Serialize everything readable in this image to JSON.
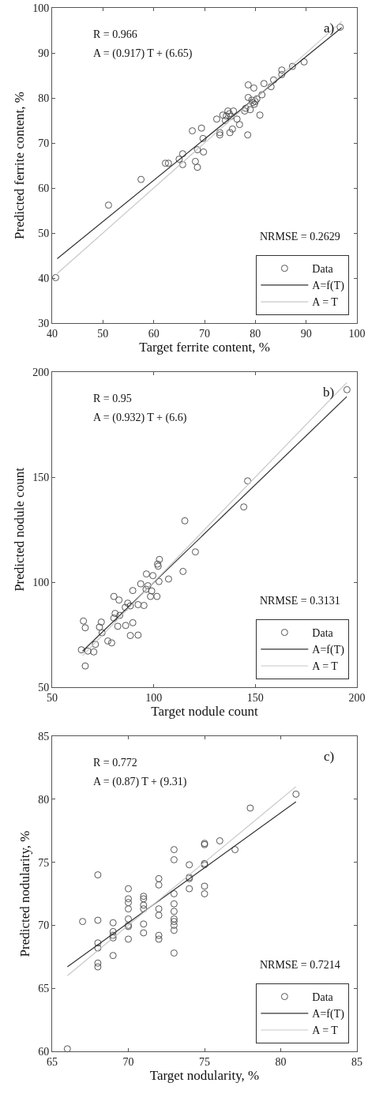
{
  "chart_data": [
    {
      "type": "scatter",
      "xlabel": "Target ferrite content, %",
      "ylabel": "Predicted ferrite content, %",
      "xlim": [
        40,
        100
      ],
      "ylim": [
        30,
        100
      ],
      "xticks": [
        40,
        50,
        60,
        70,
        80,
        90,
        100
      ],
      "yticks": [
        30,
        40,
        50,
        60,
        70,
        80,
        90,
        100
      ],
      "grid": false,
      "legend": "bottom right",
      "annotations": [
        "a)",
        "R = 0.966",
        "A = (0.917) T + (6.65)",
        "NRMSE = 0.2629"
      ],
      "series": [
        {
          "name": "Data",
          "type": "scatter",
          "marker": "circle",
          "color": "#555555",
          "x": [
            96.7,
            89.6,
            87.3,
            85.2,
            85.2,
            83.6,
            83.1,
            81.7,
            78.6,
            79.7,
            81.3,
            78.6,
            79.3,
            80.3,
            79.8,
            79.0,
            80.9,
            78.1,
            77.9,
            78.5,
            75.7,
            74.6,
            73.6,
            75.2,
            72.4,
            74.1,
            76.4,
            76.9,
            75.5,
            75.0,
            73.0,
            73.0,
            67.6,
            69.4,
            69.7,
            68.6,
            69.8,
            65.7,
            65.0,
            65.7,
            62.3,
            62.9,
            68.2,
            68.6,
            57.5,
            51.1,
            40.7,
            79.5,
            80.0,
            74.3,
            74.9
          ],
          "values": [
            95.7,
            88.0,
            87.0,
            86.2,
            85.2,
            84.0,
            82.5,
            83.2,
            82.9,
            82.2,
            80.7,
            80.1,
            79.5,
            79.8,
            78.6,
            77.4,
            76.2,
            77.7,
            77.1,
            71.8,
            77.1,
            77.1,
            76.2,
            75.9,
            75.3,
            75.0,
            75.3,
            74.1,
            73.1,
            72.3,
            72.3,
            71.8,
            72.7,
            73.3,
            71.0,
            68.5,
            68.0,
            67.6,
            66.4,
            65.2,
            65.5,
            65.5,
            65.9,
            64.6,
            61.9,
            56.2,
            40.1,
            79.0,
            79.2,
            76.0,
            76.5
          ]
        },
        {
          "name": "A=f(T)",
          "type": "line",
          "color": "#333333",
          "x": [
            41,
            97
          ],
          "values": [
            44.3,
            95.6
          ]
        },
        {
          "name": "A = T",
          "type": "line",
          "color": "#c8c8c8",
          "x": [
            41,
            97
          ],
          "values": [
            41,
            97
          ]
        }
      ]
    },
    {
      "type": "scatter",
      "xlabel": "Target nodule count",
      "ylabel": "Predicted nodule count",
      "xlim": [
        50,
        200
      ],
      "ylim": [
        50,
        200
      ],
      "xticks": [
        50,
        100,
        150,
        200
      ],
      "yticks": [
        50,
        100,
        150,
        200
      ],
      "grid": false,
      "legend": "bottom right",
      "annotations": [
        "b)",
        "R = 0.95",
        "A = (0.932) T + (6.6)",
        "NRMSE = 0.3131"
      ],
      "series": [
        {
          "name": "Data",
          "type": "scatter",
          "marker": "circle",
          "color": "#555555",
          "x": [
            195.1,
            146.2,
            144.3,
            115.3,
            120.5,
            114.4,
            107.3,
            102.8,
            101.9,
            102.2,
            96.4,
            99.6,
            102.6,
            93.6,
            97.1,
            96.2,
            99.0,
            101.6,
            98.4,
            95.2,
            92.3,
            89.7,
            80.4,
            82.9,
            87.2,
            86.0,
            88.5,
            81.0,
            83.3,
            80.4,
            89.7,
            86.2,
            82.3,
            88.5,
            92.3,
            74.2,
            73.3,
            74.6,
            65.4,
            66.3,
            77.4,
            79.3,
            71.3,
            64.4,
            67.6,
            70.5,
            66.3
          ],
          "values": [
            191.6,
            148.2,
            135.8,
            129.2,
            114.4,
            105.1,
            101.5,
            110.8,
            108.6,
            107.6,
            103.9,
            103.1,
            100.3,
            99.2,
            98.3,
            96.6,
            95.8,
            93.2,
            93.2,
            88.9,
            89.3,
            96.0,
            93.2,
            91.5,
            90.0,
            88.0,
            88.7,
            85.1,
            84.2,
            82.9,
            80.7,
            79.4,
            79.0,
            74.6,
            74.8,
            81.0,
            78.6,
            75.9,
            81.5,
            78.3,
            72.0,
            71.1,
            70.4,
            67.8,
            67.2,
            66.8,
            60.1
          ]
        },
        {
          "name": "A=f(T)",
          "type": "line",
          "color": "#333333",
          "x": [
            65,
            195
          ],
          "values": [
            67.2,
            188.3
          ]
        },
        {
          "name": "A = T",
          "type": "line",
          "color": "#c8c8c8",
          "x": [
            65,
            195
          ],
          "values": [
            65,
            195
          ]
        }
      ]
    },
    {
      "type": "scatter",
      "xlabel": "Target nodularity, %",
      "ylabel": "Predicted nodularity, %",
      "xlim": [
        65,
        85
      ],
      "ylim": [
        60,
        85
      ],
      "xticks": [
        65,
        70,
        75,
        80,
        85
      ],
      "yticks": [
        60,
        65,
        70,
        75,
        80,
        85
      ],
      "grid": false,
      "legend": "bottom right",
      "annotations": [
        "c)",
        "R = 0.772",
        "A = (0.87) T + (9.31)",
        "NRMSE = 0.7214"
      ],
      "series": [
        {
          "name": "Data",
          "type": "scatter",
          "marker": "circle",
          "color": "#555555",
          "x": [
            81,
            78,
            76,
            77,
            75,
            75,
            75,
            75,
            75,
            75,
            74,
            74,
            74,
            74,
            73,
            73,
            73,
            73,
            73,
            73,
            73,
            73,
            73,
            73,
            72,
            72,
            72,
            72,
            72,
            72,
            71,
            71,
            71,
            71,
            71,
            71,
            70,
            70,
            70,
            70,
            70,
            70,
            70,
            70,
            69,
            69,
            69,
            69,
            69,
            68,
            68,
            68,
            68,
            68,
            68,
            67,
            66
          ],
          "values": [
            80.4,
            79.3,
            76.7,
            76.0,
            76.5,
            76.4,
            74.9,
            74.8,
            73.1,
            72.5,
            74.8,
            73.8,
            73.7,
            72.9,
            76.0,
            75.2,
            72.5,
            71.7,
            71.1,
            70.5,
            70.3,
            70.0,
            69.6,
            67.8,
            73.7,
            73.2,
            71.3,
            70.8,
            69.2,
            68.9,
            72.3,
            72.1,
            71.6,
            71.3,
            70.1,
            69.4,
            72.9,
            72.1,
            71.8,
            71.3,
            70.5,
            70.0,
            69.9,
            68.9,
            70.2,
            69.5,
            69.2,
            69.0,
            67.6,
            74.0,
            70.4,
            68.6,
            68.2,
            67.0,
            66.7,
            70.3,
            60.2
          ]
        },
        {
          "name": "A=f(T)",
          "type": "line",
          "color": "#333333",
          "x": [
            66,
            81
          ],
          "values": [
            66.7,
            79.8
          ]
        },
        {
          "name": "A = T",
          "type": "line",
          "color": "#c8c8c8",
          "x": [
            66,
            81
          ],
          "values": [
            66,
            81
          ]
        }
      ]
    }
  ]
}
